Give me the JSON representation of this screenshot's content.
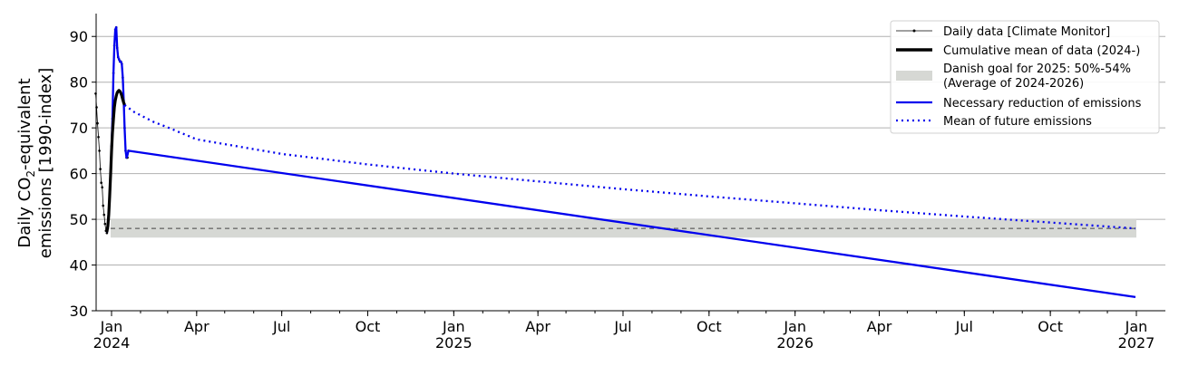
{
  "chart_data": {
    "type": "line",
    "title": "",
    "xlabel": "",
    "ylabel_line1": "Daily CO",
    "ylabel_line1_sub": "2",
    "ylabel_line1_tail": "-equivalent",
    "ylabel_line2": "emissions [1990-index]",
    "x_axis": {
      "type": "date",
      "range": [
        "2023-12-15",
        "2027-01-01"
      ],
      "ticks": [
        {
          "date": "2024-01-01",
          "label": "Jan",
          "year": "2024"
        },
        {
          "date": "2024-04-01",
          "label": "Apr",
          "year": ""
        },
        {
          "date": "2024-07-01",
          "label": "Jul",
          "year": ""
        },
        {
          "date": "2024-10-01",
          "label": "Oct",
          "year": ""
        },
        {
          "date": "2025-01-01",
          "label": "Jan",
          "year": "2025"
        },
        {
          "date": "2025-04-01",
          "label": "Apr",
          "year": ""
        },
        {
          "date": "2025-07-01",
          "label": "Jul",
          "year": ""
        },
        {
          "date": "2025-10-01",
          "label": "Oct",
          "year": ""
        },
        {
          "date": "2026-01-01",
          "label": "Jan",
          "year": "2026"
        },
        {
          "date": "2026-04-01",
          "label": "Apr",
          "year": ""
        },
        {
          "date": "2026-07-01",
          "label": "Jul",
          "year": ""
        },
        {
          "date": "2026-10-01",
          "label": "Oct",
          "year": ""
        },
        {
          "date": "2027-01-01",
          "label": "Jan",
          "year": "2027"
        }
      ]
    },
    "y_axis": {
      "range": [
        30,
        95
      ],
      "ticks": [
        30,
        40,
        50,
        60,
        70,
        80,
        90
      ],
      "grid": true
    },
    "goal_band": {
      "y_low": 46,
      "y_high": 50,
      "color": "#d6d8d4",
      "ref_line": 48
    },
    "series": [
      {
        "name": "Daily data [Climate Monitor]",
        "style": "line-markers",
        "color": "#000000",
        "points": [
          [
            "2023-12-15",
            77.5
          ],
          [
            "2023-12-16",
            74.5
          ],
          [
            "2023-12-17",
            71
          ],
          [
            "2023-12-18",
            68
          ],
          [
            "2023-12-19",
            65
          ],
          [
            "2023-12-20",
            61
          ],
          [
            "2023-12-21",
            58
          ],
          [
            "2023-12-22",
            57
          ],
          [
            "2023-12-23",
            53
          ],
          [
            "2023-12-24",
            51
          ],
          [
            "2023-12-25",
            49
          ],
          [
            "2023-12-26",
            47.5
          ],
          [
            "2023-12-27",
            47
          ],
          [
            "2023-12-28",
            48
          ],
          [
            "2023-12-29",
            51.5
          ],
          [
            "2023-12-30",
            55
          ],
          [
            "2023-12-31",
            60
          ],
          [
            "2024-01-01",
            66
          ],
          [
            "2024-01-02",
            72
          ],
          [
            "2024-01-03",
            82
          ],
          [
            "2024-01-04",
            88
          ],
          [
            "2024-01-05",
            91.5
          ],
          [
            "2024-01-06",
            92
          ],
          [
            "2024-01-07",
            87.5
          ],
          [
            "2024-01-08",
            85.5
          ],
          [
            "2024-01-09",
            85
          ],
          [
            "2024-01-10",
            84.5
          ],
          [
            "2024-01-11",
            84.5
          ],
          [
            "2024-01-12",
            84
          ],
          [
            "2024-01-13",
            81
          ],
          [
            "2024-01-14",
            76
          ],
          [
            "2024-01-15",
            70
          ],
          [
            "2024-01-16",
            65
          ],
          [
            "2024-01-17",
            63.5
          ],
          [
            "2024-01-18",
            63.5
          ],
          [
            "2024-01-19",
            65
          ]
        ]
      },
      {
        "name": "Cumulative mean of data (2024-)",
        "style": "thick",
        "color": "#000000",
        "points": [
          [
            "2023-12-27",
            47.2
          ],
          [
            "2023-12-28",
            48.5
          ],
          [
            "2023-12-29",
            51
          ],
          [
            "2023-12-30",
            55
          ],
          [
            "2023-12-31",
            60
          ],
          [
            "2024-01-01",
            65
          ],
          [
            "2024-01-02",
            69
          ],
          [
            "2024-01-03",
            72
          ],
          [
            "2024-01-04",
            74.5
          ],
          [
            "2024-01-05",
            76
          ],
          [
            "2024-01-06",
            77
          ],
          [
            "2024-01-07",
            77.7
          ],
          [
            "2024-01-08",
            78
          ],
          [
            "2024-01-09",
            78.2
          ],
          [
            "2024-01-10",
            78
          ],
          [
            "2024-01-11",
            77.6
          ],
          [
            "2024-01-12",
            77
          ],
          [
            "2024-01-13",
            76.2
          ],
          [
            "2024-01-14",
            75.5
          ],
          [
            "2024-01-15",
            75
          ]
        ]
      },
      {
        "name": "Necessary reduction of emissions",
        "style": "solid",
        "color": "#0000ee",
        "points": [
          [
            "2023-12-27",
            47.2
          ],
          [
            "2023-12-28",
            48.5
          ],
          [
            "2023-12-29",
            51.5
          ],
          [
            "2023-12-30",
            55
          ],
          [
            "2023-12-31",
            60
          ],
          [
            "2024-01-01",
            66
          ],
          [
            "2024-01-02",
            72
          ],
          [
            "2024-01-03",
            82
          ],
          [
            "2024-01-04",
            88
          ],
          [
            "2024-01-05",
            91.5
          ],
          [
            "2024-01-06",
            92
          ],
          [
            "2024-01-07",
            87.5
          ],
          [
            "2024-01-08",
            85.5
          ],
          [
            "2024-01-09",
            85
          ],
          [
            "2024-01-10",
            84.5
          ],
          [
            "2024-01-11",
            84.5
          ],
          [
            "2024-01-12",
            84
          ],
          [
            "2024-01-13",
            81
          ],
          [
            "2024-01-14",
            76
          ],
          [
            "2024-01-15",
            70
          ],
          [
            "2024-01-16",
            65
          ],
          [
            "2024-01-17",
            63.5
          ],
          [
            "2024-01-18",
            64
          ],
          [
            "2024-01-19",
            65
          ],
          [
            "2026-12-31",
            33
          ]
        ]
      },
      {
        "name": "Mean of future emissions",
        "style": "dotted",
        "color": "#0000ee",
        "points": [
          [
            "2024-01-15",
            75
          ],
          [
            "2024-01-25",
            73.5
          ],
          [
            "2024-02-15",
            71.3
          ],
          [
            "2024-03-01",
            70.1
          ],
          [
            "2024-04-01",
            67.5
          ],
          [
            "2024-07-01",
            64.3
          ],
          [
            "2024-10-01",
            62
          ],
          [
            "2025-01-01",
            60
          ],
          [
            "2025-04-01",
            58.3
          ],
          [
            "2025-07-01",
            56.6
          ],
          [
            "2025-10-01",
            55
          ],
          [
            "2026-01-01",
            53.5
          ],
          [
            "2026-04-01",
            52
          ],
          [
            "2026-07-01",
            50.6
          ],
          [
            "2026-10-01",
            49.3
          ],
          [
            "2026-12-31",
            48
          ]
        ]
      }
    ],
    "legend": {
      "placement": "top-right",
      "items": [
        {
          "label": "Daily data [Climate Monitor]",
          "kind": "thin-marker"
        },
        {
          "label": "Cumulative mean of data (2024-)",
          "kind": "thick"
        },
        {
          "label": "Danish goal for 2025: 50%-54%",
          "label2": "(Average of 2024-2026)",
          "kind": "band"
        },
        {
          "label": "Necessary reduction of emissions",
          "kind": "blue-solid"
        },
        {
          "label": "Mean of future emissions",
          "kind": "blue-dotted"
        }
      ]
    }
  }
}
